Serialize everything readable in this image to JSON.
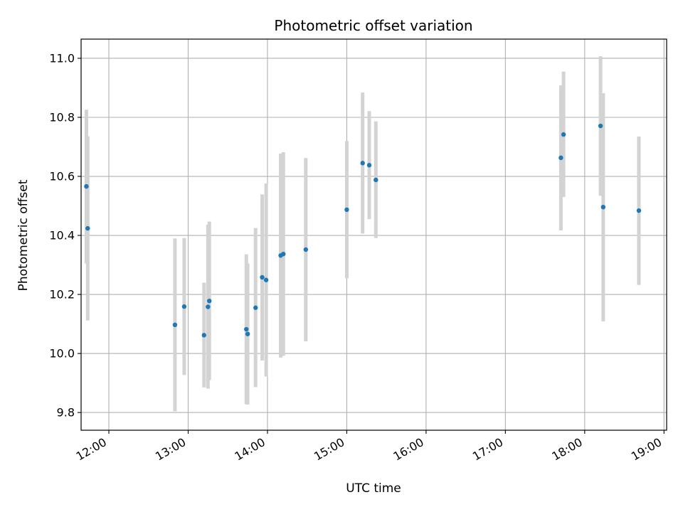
{
  "chart_data": {
    "type": "scatter",
    "title": "Photometric offset variation",
    "xlabel": "UTC time",
    "ylabel": "Photometric offset",
    "grid": true,
    "x_ticks": [
      "12:00",
      "13:00",
      "14:00",
      "15:00",
      "16:00",
      "17:00",
      "18:00",
      "19:00"
    ],
    "y_ticks": [
      "9.8",
      "10.0",
      "10.2",
      "10.4",
      "10.6",
      "10.8",
      "11.0"
    ],
    "xlim": [
      "11:39",
      "19:02"
    ],
    "ylim": [
      9.74,
      11.065
    ],
    "colors": {
      "marker": "#1f77b4",
      "errorbar": "#d3d3d3",
      "grid": "#b0b0b0"
    },
    "series": [
      {
        "points": [
          {
            "x": "11:43",
            "y": 10.566,
            "ylow": 10.305,
            "yhigh": 10.826
          },
          {
            "x": "11:44",
            "y": 10.424,
            "ylow": 10.112,
            "yhigh": 10.736
          },
          {
            "x": "12:50",
            "y": 10.097,
            "ylow": 9.804,
            "yhigh": 10.39
          },
          {
            "x": "12:57",
            "y": 10.159,
            "ylow": 9.927,
            "yhigh": 10.391
          },
          {
            "x": "13:12",
            "y": 10.062,
            "ylow": 9.885,
            "yhigh": 10.24
          },
          {
            "x": "13:15",
            "y": 10.158,
            "ylow": 9.881,
            "yhigh": 10.436
          },
          {
            "x": "13:16",
            "y": 10.178,
            "ylow": 9.91,
            "yhigh": 10.447
          },
          {
            "x": "13:44",
            "y": 10.082,
            "ylow": 9.828,
            "yhigh": 10.336
          },
          {
            "x": "13:45",
            "y": 10.066,
            "ylow": 9.827,
            "yhigh": 10.305
          },
          {
            "x": "13:51",
            "y": 10.155,
            "ylow": 9.886,
            "yhigh": 10.425
          },
          {
            "x": "13:56",
            "y": 10.258,
            "ylow": 9.976,
            "yhigh": 10.539
          },
          {
            "x": "13:59",
            "y": 10.249,
            "ylow": 9.922,
            "yhigh": 10.576
          },
          {
            "x": "14:10",
            "y": 10.332,
            "ylow": 9.986,
            "yhigh": 10.677
          },
          {
            "x": "14:12",
            "y": 10.337,
            "ylow": 9.992,
            "yhigh": 10.682
          },
          {
            "x": "14:29",
            "y": 10.352,
            "ylow": 10.041,
            "yhigh": 10.662
          },
          {
            "x": "15:00",
            "y": 10.487,
            "ylow": 10.255,
            "yhigh": 10.72
          },
          {
            "x": "15:12",
            "y": 10.645,
            "ylow": 10.406,
            "yhigh": 10.884
          },
          {
            "x": "15:17",
            "y": 10.638,
            "ylow": 10.455,
            "yhigh": 10.821
          },
          {
            "x": "15:22",
            "y": 10.588,
            "ylow": 10.391,
            "yhigh": 10.786
          },
          {
            "x": "17:42",
            "y": 10.663,
            "ylow": 10.417,
            "yhigh": 10.908
          },
          {
            "x": "17:44",
            "y": 10.742,
            "ylow": 10.53,
            "yhigh": 10.955
          },
          {
            "x": "18:12",
            "y": 10.771,
            "ylow": 10.534,
            "yhigh": 11.007
          },
          {
            "x": "18:14",
            "y": 10.496,
            "ylow": 10.109,
            "yhigh": 10.882
          },
          {
            "x": "18:41",
            "y": 10.484,
            "ylow": 10.232,
            "yhigh": 10.735
          }
        ]
      }
    ]
  }
}
